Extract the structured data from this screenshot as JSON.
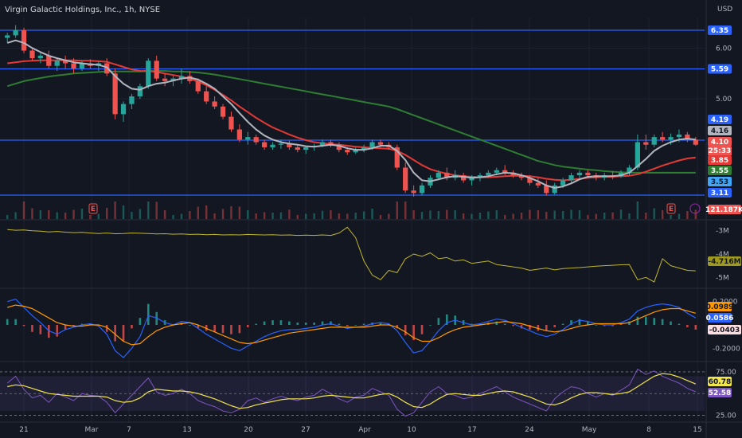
{
  "header": {
    "title": "Virgin Galactic Holdings, Inc., 1h, NYSE",
    "currency": "USD"
  },
  "colors": {
    "background": "#131722",
    "grid": "#1e2230",
    "up": "#26a69a",
    "down": "#ef5350",
    "hline": "#2962ff",
    "ma_fast": "#b2b5be",
    "ma_mid": "#e53935",
    "ma_slow": "#2e7d32",
    "obv": "#c0b62e",
    "macd": "#2962ff",
    "signal": "#ff9800",
    "rsi": "#7e57c2",
    "rsi_ma": "#f0e54c"
  },
  "time_axis": {
    "labels": [
      "21",
      "Mar",
      "7",
      "13",
      "20",
      "27",
      "Apr",
      "10",
      "17",
      "24",
      "May",
      "8",
      "15"
    ]
  },
  "chart_data": [
    {
      "type": "candlestick",
      "name": "price",
      "y_axis_ticks": [
        "6.35",
        "6.00",
        "5.59",
        "5.00",
        "4.19",
        "4.16",
        "4.10",
        "3.85",
        "3.55",
        "3.53",
        "3.11"
      ],
      "ylim": [
        3.0,
        6.6
      ],
      "horizontal_levels": [
        6.35,
        5.59,
        4.19,
        3.11
      ],
      "candles": [
        [
          6.2,
          6.3,
          6.1,
          6.25
        ],
        [
          6.25,
          6.45,
          6.2,
          6.35
        ],
        [
          6.35,
          6.4,
          5.9,
          5.95
        ],
        [
          5.95,
          6.0,
          5.75,
          5.8
        ],
        [
          5.8,
          5.9,
          5.7,
          5.85
        ],
        [
          5.85,
          5.95,
          5.6,
          5.65
        ],
        [
          5.65,
          5.8,
          5.55,
          5.75
        ],
        [
          5.75,
          5.85,
          5.6,
          5.7
        ],
        [
          5.7,
          5.8,
          5.5,
          5.6
        ],
        [
          5.6,
          5.75,
          5.55,
          5.7
        ],
        [
          5.7,
          5.78,
          5.6,
          5.65
        ],
        [
          5.65,
          5.75,
          5.55,
          5.7
        ],
        [
          5.7,
          5.8,
          5.45,
          5.5
        ],
        [
          5.5,
          5.6,
          4.6,
          4.7
        ],
        [
          4.7,
          4.95,
          4.55,
          4.9
        ],
        [
          4.9,
          5.1,
          4.8,
          5.05
        ],
        [
          5.05,
          5.3,
          5.0,
          5.25
        ],
        [
          5.25,
          5.8,
          5.2,
          5.75
        ],
        [
          5.75,
          5.85,
          5.35,
          5.4
        ],
        [
          5.4,
          5.5,
          5.25,
          5.35
        ],
        [
          5.35,
          5.45,
          5.25,
          5.4
        ],
        [
          5.4,
          5.6,
          5.3,
          5.45
        ],
        [
          5.45,
          5.55,
          5.3,
          5.35
        ],
        [
          5.35,
          5.4,
          5.1,
          5.15
        ],
        [
          5.15,
          5.25,
          4.9,
          4.95
        ],
        [
          4.95,
          5.05,
          4.8,
          4.85
        ],
        [
          4.85,
          4.9,
          4.6,
          4.65
        ],
        [
          4.65,
          4.75,
          4.35,
          4.4
        ],
        [
          4.4,
          4.5,
          4.15,
          4.2
        ],
        [
          4.2,
          4.35,
          4.1,
          4.25
        ],
        [
          4.25,
          4.3,
          4.1,
          4.15
        ],
        [
          4.15,
          4.2,
          4.0,
          4.05
        ],
        [
          4.05,
          4.15,
          4.0,
          4.1
        ],
        [
          4.1,
          4.2,
          4.02,
          4.12
        ],
        [
          4.12,
          4.18,
          4.0,
          4.05
        ],
        [
          4.05,
          4.1,
          3.95,
          4.0
        ],
        [
          4.0,
          4.08,
          3.92,
          4.05
        ],
        [
          4.05,
          4.12,
          3.98,
          4.08
        ],
        [
          4.08,
          4.2,
          4.05,
          4.15
        ],
        [
          4.15,
          4.2,
          4.05,
          4.1
        ],
        [
          4.1,
          4.15,
          3.95,
          4.0
        ],
        [
          4.0,
          4.05,
          3.9,
          3.95
        ],
        [
          3.95,
          4.05,
          3.92,
          4.0
        ],
        [
          4.0,
          4.1,
          3.95,
          4.05
        ],
        [
          4.05,
          4.2,
          4.0,
          4.15
        ],
        [
          4.15,
          4.2,
          4.05,
          4.1
        ],
        [
          4.1,
          4.15,
          4.0,
          4.05
        ],
        [
          4.05,
          4.1,
          3.6,
          3.65
        ],
        [
          3.65,
          3.75,
          3.15,
          3.2
        ],
        [
          3.2,
          3.3,
          3.08,
          3.15
        ],
        [
          3.15,
          3.35,
          3.1,
          3.3
        ],
        [
          3.3,
          3.5,
          3.25,
          3.45
        ],
        [
          3.45,
          3.6,
          3.4,
          3.55
        ],
        [
          3.55,
          3.65,
          3.4,
          3.45
        ],
        [
          3.45,
          3.6,
          3.4,
          3.5
        ],
        [
          3.5,
          3.55,
          3.35,
          3.4
        ],
        [
          3.4,
          3.5,
          3.3,
          3.45
        ],
        [
          3.45,
          3.55,
          3.38,
          3.5
        ],
        [
          3.5,
          3.6,
          3.45,
          3.55
        ],
        [
          3.55,
          3.65,
          3.5,
          3.6
        ],
        [
          3.6,
          3.7,
          3.5,
          3.55
        ],
        [
          3.55,
          3.6,
          3.45,
          3.5
        ],
        [
          3.5,
          3.55,
          3.4,
          3.45
        ],
        [
          3.45,
          3.5,
          3.3,
          3.35
        ],
        [
          3.35,
          3.45,
          3.25,
          3.3
        ],
        [
          3.3,
          3.4,
          3.1,
          3.15
        ],
        [
          3.15,
          3.35,
          3.12,
          3.3
        ],
        [
          3.3,
          3.45,
          3.25,
          3.4
        ],
        [
          3.4,
          3.55,
          3.35,
          3.5
        ],
        [
          3.5,
          3.6,
          3.45,
          3.55
        ],
        [
          3.55,
          3.6,
          3.45,
          3.5
        ],
        [
          3.5,
          3.55,
          3.4,
          3.45
        ],
        [
          3.45,
          3.55,
          3.4,
          3.5
        ],
        [
          3.5,
          3.58,
          3.42,
          3.48
        ],
        [
          3.48,
          3.6,
          3.45,
          3.55
        ],
        [
          3.55,
          3.7,
          3.5,
          3.65
        ],
        [
          3.65,
          4.3,
          3.6,
          4.15
        ],
        [
          4.15,
          4.3,
          4.0,
          4.1
        ],
        [
          4.1,
          4.3,
          4.05,
          4.25
        ],
        [
          4.25,
          4.35,
          4.15,
          4.2
        ],
        [
          4.2,
          4.32,
          4.1,
          4.25
        ],
        [
          4.25,
          4.4,
          4.15,
          4.3
        ],
        [
          4.3,
          4.35,
          4.15,
          4.2
        ],
        [
          4.2,
          4.25,
          4.08,
          4.1
        ]
      ],
      "ma_fast": [
        6.1,
        6.15,
        6.1,
        6.0,
        5.92,
        5.85,
        5.8,
        5.76,
        5.72,
        5.7,
        5.68,
        5.67,
        5.62,
        5.45,
        5.3,
        5.2,
        5.18,
        5.25,
        5.3,
        5.32,
        5.36,
        5.4,
        5.42,
        5.38,
        5.3,
        5.2,
        5.05,
        4.9,
        4.72,
        4.55,
        4.4,
        4.28,
        4.2,
        4.15,
        4.12,
        4.1,
        4.07,
        4.06,
        4.08,
        4.1,
        4.08,
        4.03,
        4.0,
        4.0,
        4.03,
        4.08,
        4.08,
        3.98,
        3.8,
        3.55,
        3.4,
        3.38,
        3.42,
        3.46,
        3.48,
        3.47,
        3.45,
        3.46,
        3.48,
        3.52,
        3.55,
        3.54,
        3.5,
        3.45,
        3.38,
        3.3,
        3.25,
        3.28,
        3.34,
        3.42,
        3.47,
        3.48,
        3.48,
        3.48,
        3.5,
        3.55,
        3.68,
        3.82,
        3.98,
        4.08,
        4.15,
        4.2,
        4.22,
        4.2
      ],
      "ma_mid": [
        5.7,
        5.72,
        5.74,
        5.75,
        5.76,
        5.76,
        5.76,
        5.76,
        5.76,
        5.75,
        5.75,
        5.74,
        5.73,
        5.68,
        5.63,
        5.58,
        5.55,
        5.55,
        5.53,
        5.5,
        5.47,
        5.44,
        5.4,
        5.34,
        5.27,
        5.18,
        5.08,
        4.97,
        4.85,
        4.74,
        4.63,
        4.53,
        4.44,
        4.37,
        4.3,
        4.24,
        4.19,
        4.15,
        4.13,
        4.11,
        4.1,
        4.08,
        4.06,
        4.05,
        4.04,
        4.03,
        4.02,
        3.98,
        3.9,
        3.8,
        3.7,
        3.62,
        3.57,
        3.53,
        3.5,
        3.48,
        3.47,
        3.46,
        3.46,
        3.47,
        3.48,
        3.49,
        3.49,
        3.48,
        3.46,
        3.43,
        3.41,
        3.4,
        3.41,
        3.43,
        3.45,
        3.46,
        3.47,
        3.47,
        3.48,
        3.49,
        3.52,
        3.57,
        3.63,
        3.69,
        3.74,
        3.79,
        3.83,
        3.85
      ],
      "ma_slow": [
        5.25,
        5.3,
        5.35,
        5.38,
        5.41,
        5.44,
        5.46,
        5.48,
        5.5,
        5.51,
        5.52,
        5.53,
        5.54,
        5.54,
        5.54,
        5.54,
        5.54,
        5.55,
        5.55,
        5.55,
        5.54,
        5.54,
        5.53,
        5.52,
        5.5,
        5.48,
        5.45,
        5.42,
        5.39,
        5.36,
        5.33,
        5.3,
        5.27,
        5.24,
        5.21,
        5.18,
        5.15,
        5.12,
        5.09,
        5.06,
        5.03,
        5.0,
        4.97,
        4.94,
        4.91,
        4.88,
        4.85,
        4.8,
        4.74,
        4.68,
        4.62,
        4.56,
        4.5,
        4.44,
        4.38,
        4.32,
        4.26,
        4.2,
        4.14,
        4.08,
        4.02,
        3.96,
        3.9,
        3.84,
        3.78,
        3.74,
        3.7,
        3.67,
        3.65,
        3.63,
        3.61,
        3.6,
        3.58,
        3.57,
        3.56,
        3.55,
        3.55,
        3.55,
        3.55,
        3.55,
        3.55,
        3.55,
        3.55,
        3.55
      ],
      "volume_label": "121.187K",
      "countdown": "25:33"
    },
    {
      "type": "line",
      "name": "obv",
      "y_axis_ticks": [
        "-3M",
        "-4M",
        "-5M"
      ],
      "ylim": [
        -5.4,
        -2.6
      ],
      "last_value": "-4.716M",
      "values": [
        -2.95,
        -2.98,
        -2.97,
        -3.0,
        -3.02,
        -3.05,
        -3.03,
        -3.06,
        -3.08,
        -3.07,
        -3.1,
        -3.12,
        -3.1,
        -3.13,
        -3.12,
        -3.1,
        -3.11,
        -3.12,
        -3.14,
        -3.13,
        -3.15,
        -3.14,
        -3.16,
        -3.15,
        -3.17,
        -3.16,
        -3.18,
        -3.17,
        -3.18,
        -3.16,
        -3.17,
        -3.18,
        -3.17,
        -3.19,
        -3.18,
        -3.2,
        -3.19,
        -3.2,
        -3.18,
        -3.2,
        -3.1,
        -2.85,
        -3.3,
        -4.3,
        -4.9,
        -5.1,
        -4.7,
        -4.8,
        -4.2,
        -4.0,
        -4.1,
        -3.95,
        -4.2,
        -4.15,
        -4.3,
        -4.25,
        -4.4,
        -4.35,
        -4.3,
        -4.45,
        -4.5,
        -4.55,
        -4.6,
        -4.7,
        -4.65,
        -4.6,
        -4.68,
        -4.62,
        -4.6,
        -4.58,
        -4.55,
        -4.52,
        -4.5,
        -4.48,
        -4.46,
        -4.45,
        -5.1,
        -5.0,
        -5.2,
        -4.2,
        -4.5,
        -4.6,
        -4.7,
        -4.72
      ]
    },
    {
      "type": "histogram+line",
      "name": "macd",
      "y_axis_ticks": [
        "0.2000",
        "-0.2000"
      ],
      "ylim": [
        -0.3,
        0.3
      ],
      "labels": {
        "signal": "0.0989",
        "macd": "0.0586",
        "histogram": "-0.0403"
      },
      "macd": [
        0.2,
        0.22,
        0.15,
        0.08,
        0.02,
        -0.05,
        -0.08,
        -0.04,
        -0.02,
        0.0,
        0.01,
        -0.01,
        -0.08,
        -0.22,
        -0.28,
        -0.2,
        -0.1,
        0.08,
        0.06,
        0.02,
        0.0,
        0.03,
        0.02,
        -0.03,
        -0.08,
        -0.12,
        -0.16,
        -0.2,
        -0.22,
        -0.18,
        -0.14,
        -0.1,
        -0.07,
        -0.05,
        -0.04,
        -0.04,
        -0.03,
        -0.02,
        0.0,
        0.01,
        -0.01,
        -0.03,
        -0.02,
        -0.01,
        0.01,
        0.02,
        0.01,
        -0.05,
        -0.15,
        -0.24,
        -0.22,
        -0.14,
        -0.05,
        0.02,
        0.04,
        0.02,
        0.0,
        0.01,
        0.03,
        0.05,
        0.04,
        0.01,
        -0.02,
        -0.05,
        -0.08,
        -0.1,
        -0.08,
        -0.04,
        0.01,
        0.04,
        0.03,
        0.01,
        0.0,
        0.0,
        0.02,
        0.05,
        0.12,
        0.15,
        0.17,
        0.18,
        0.17,
        0.15,
        0.1,
        0.06
      ],
      "signal": [
        0.15,
        0.17,
        0.16,
        0.14,
        0.1,
        0.06,
        0.02,
        0.0,
        -0.01,
        -0.01,
        0.0,
        0.0,
        -0.02,
        -0.08,
        -0.14,
        -0.17,
        -0.16,
        -0.1,
        -0.05,
        -0.02,
        0.0,
        0.01,
        0.02,
        0.0,
        -0.03,
        -0.06,
        -0.09,
        -0.12,
        -0.15,
        -0.16,
        -0.15,
        -0.13,
        -0.11,
        -0.09,
        -0.07,
        -0.06,
        -0.05,
        -0.04,
        -0.03,
        -0.02,
        -0.02,
        -0.02,
        -0.02,
        -0.02,
        -0.01,
        0.0,
        0.0,
        -0.02,
        -0.06,
        -0.11,
        -0.14,
        -0.14,
        -0.11,
        -0.07,
        -0.04,
        -0.02,
        -0.01,
        0.0,
        0.01,
        0.02,
        0.03,
        0.02,
        0.01,
        -0.01,
        -0.03,
        -0.05,
        -0.06,
        -0.05,
        -0.03,
        -0.01,
        0.0,
        0.01,
        0.01,
        0.01,
        0.01,
        0.02,
        0.05,
        0.08,
        0.11,
        0.13,
        0.14,
        0.14,
        0.12,
        0.1
      ]
    },
    {
      "type": "line",
      "name": "rsi",
      "y_axis_ticks": [
        "75.00",
        "25.00"
      ],
      "ylim": [
        20,
        85
      ],
      "band": [
        30,
        70
      ],
      "labels": {
        "rsi_ma": "60.78",
        "rsi": "52.58"
      },
      "rsi": [
        62,
        70,
        55,
        45,
        48,
        40,
        50,
        46,
        42,
        50,
        48,
        47,
        40,
        28,
        38,
        48,
        58,
        68,
        52,
        48,
        50,
        55,
        50,
        42,
        38,
        35,
        30,
        28,
        32,
        42,
        45,
        40,
        44,
        47,
        44,
        42,
        46,
        48,
        55,
        50,
        44,
        40,
        46,
        48,
        56,
        52,
        48,
        32,
        24,
        28,
        40,
        52,
        58,
        50,
        48,
        44,
        46,
        50,
        54,
        58,
        52,
        46,
        42,
        38,
        34,
        30,
        44,
        52,
        58,
        56,
        50,
        46,
        50,
        48,
        54,
        60,
        78,
        72,
        76,
        70,
        66,
        62,
        56,
        52
      ],
      "rsi_ma": [
        58,
        60,
        59,
        56,
        53,
        50,
        49,
        48,
        47,
        47,
        47,
        47,
        46,
        42,
        40,
        41,
        45,
        52,
        55,
        54,
        53,
        53,
        52,
        50,
        47,
        44,
        40,
        36,
        33,
        34,
        37,
        39,
        41,
        43,
        44,
        44,
        44,
        45,
        47,
        48,
        47,
        46,
        45,
        45,
        47,
        49,
        50,
        46,
        40,
        35,
        34,
        38,
        44,
        49,
        50,
        49,
        48,
        48,
        50,
        52,
        53,
        52,
        49,
        46,
        42,
        38,
        37,
        40,
        45,
        49,
        51,
        51,
        50,
        49,
        50,
        52,
        58,
        64,
        70,
        73,
        72,
        69,
        65,
        61
      ]
    }
  ]
}
